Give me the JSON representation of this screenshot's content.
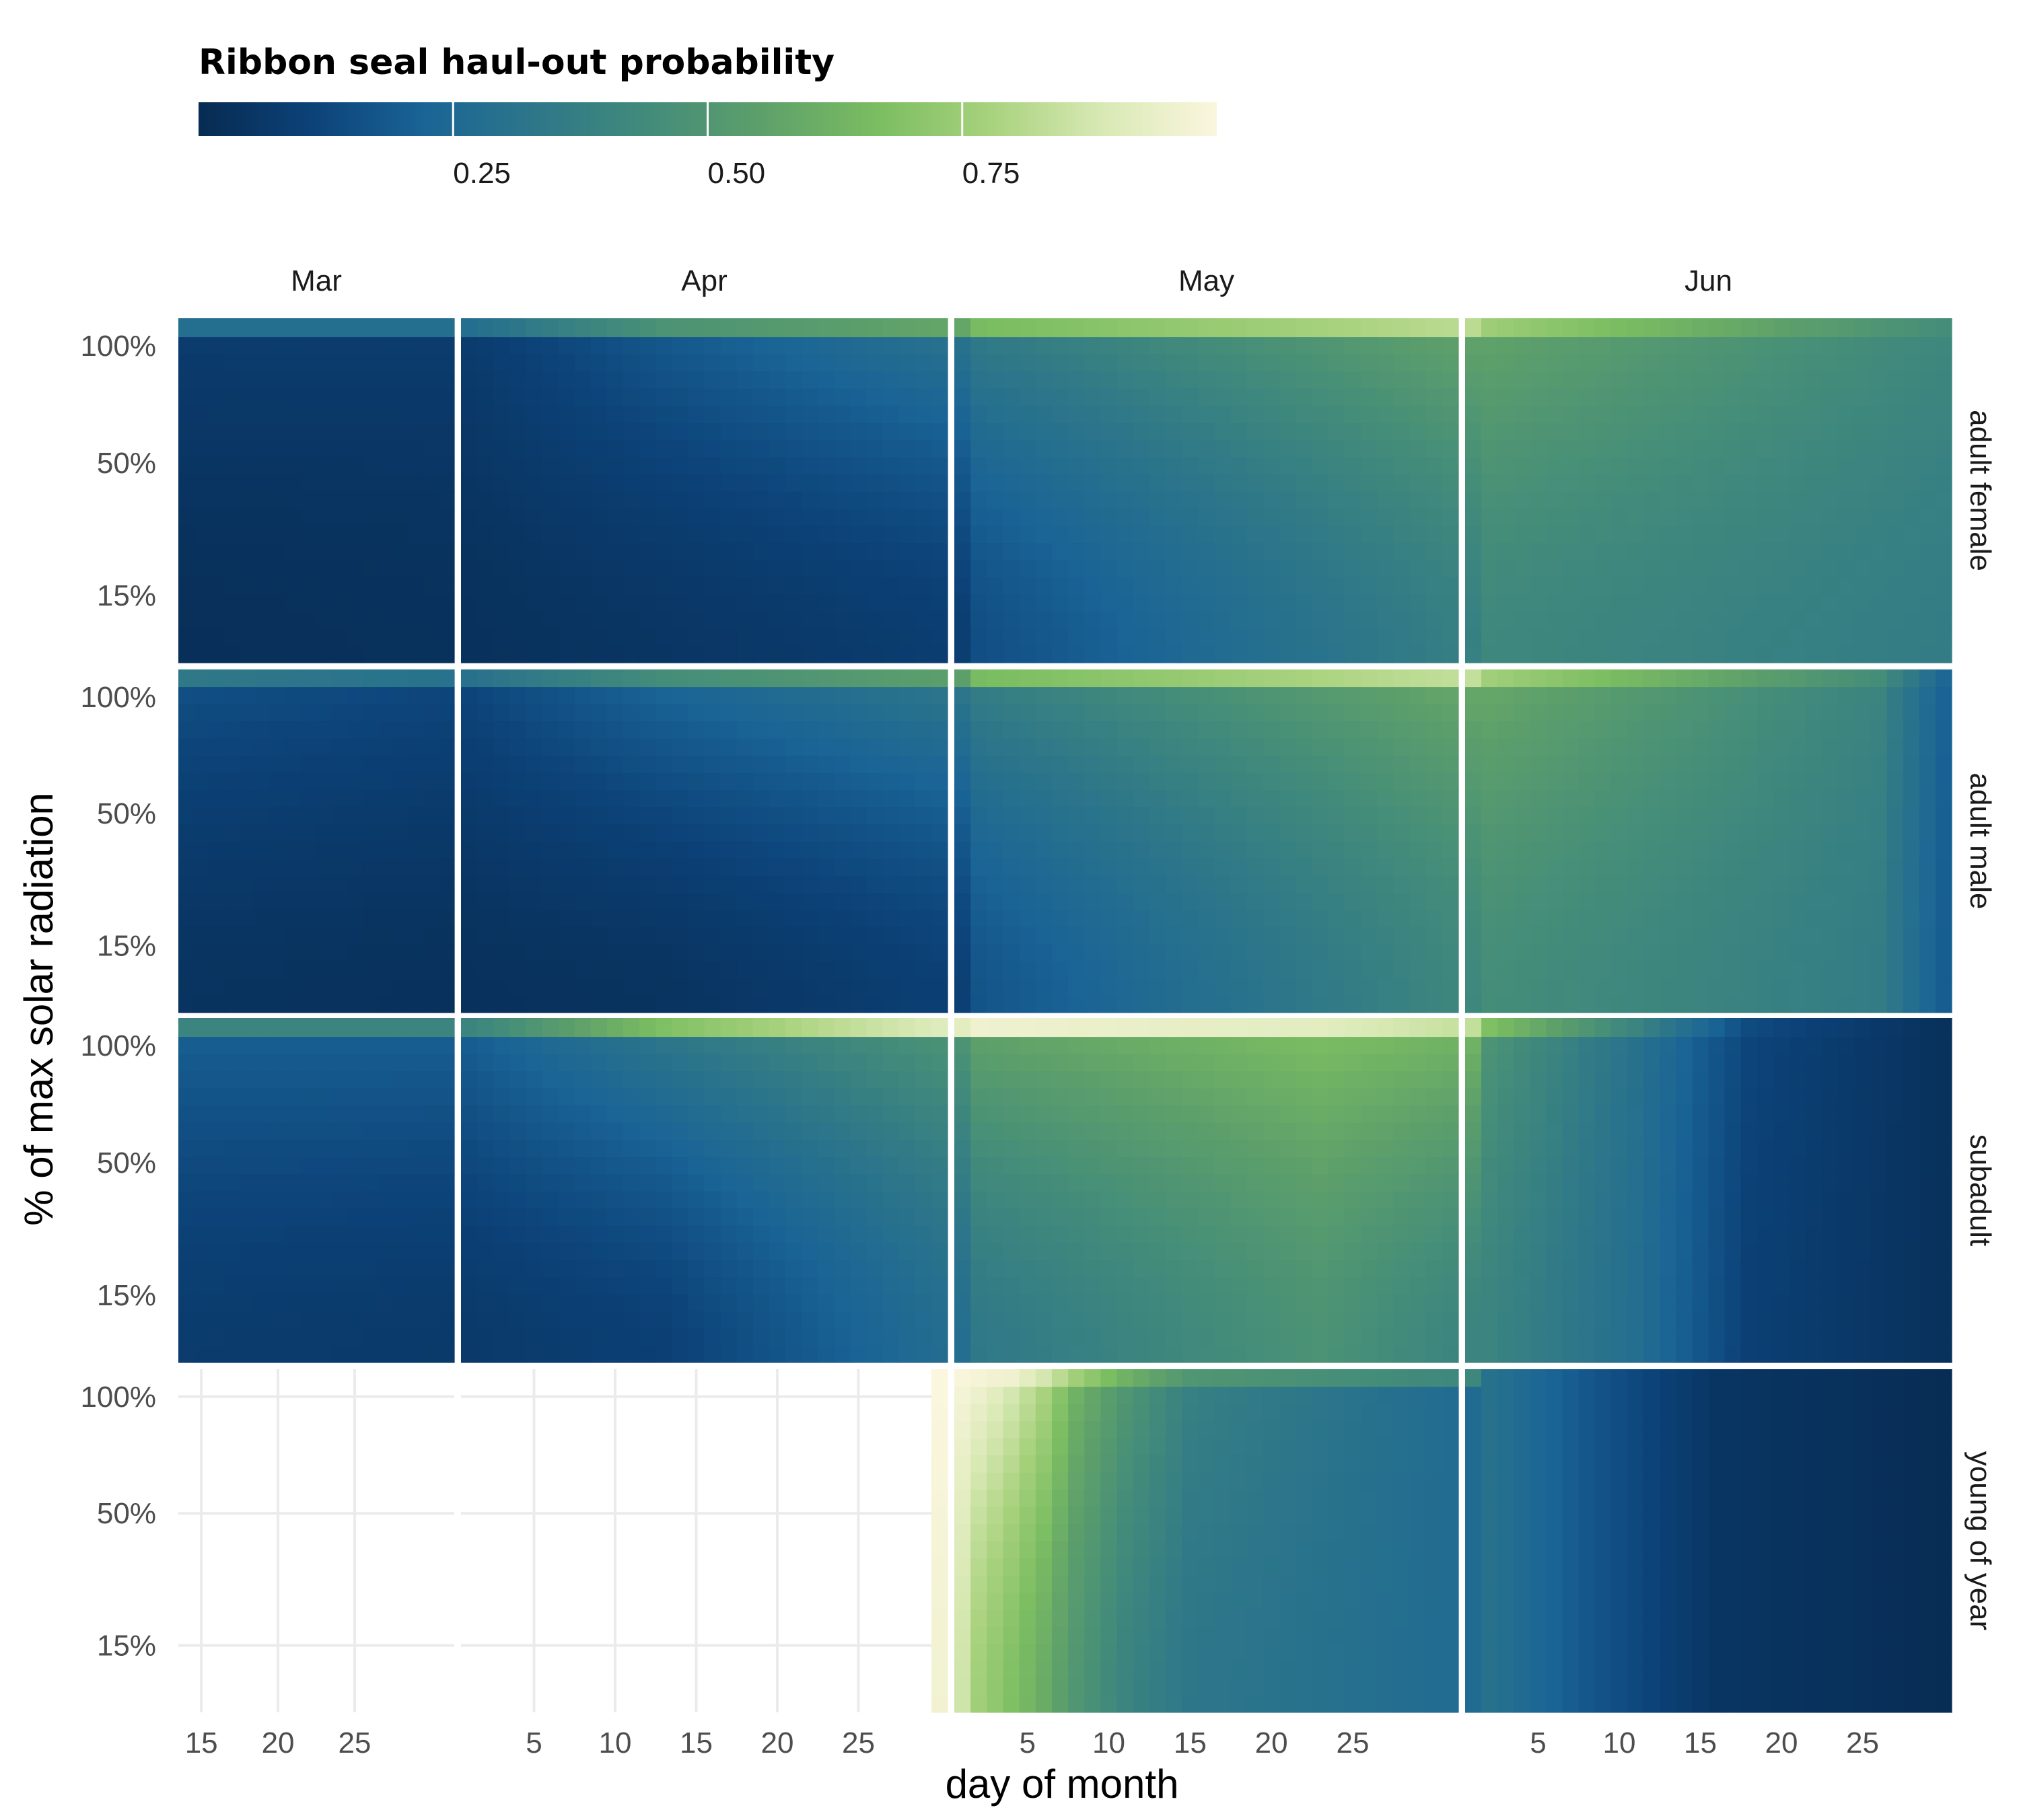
{
  "chart_data": {
    "type": "heatmap",
    "title": "",
    "legend": {
      "title": "Ribbon seal haul-out probability",
      "placement": "top-left",
      "orientation": "horizontal",
      "range": [
        0.0,
        1.0
      ],
      "ticks": [
        0.25,
        0.5,
        0.75
      ],
      "tick_labels": [
        "0.25",
        "0.50",
        "0.75"
      ],
      "colorscale": [
        "#072b52",
        "#0c4278",
        "#1a6496",
        "#2e7789",
        "#438c7a",
        "#5ea06a",
        "#7bbd61",
        "#a8d27d",
        "#d9e9b5",
        "#fbf6de"
      ]
    },
    "xlabel": "day of month",
    "ylabel": "% of max solar radiation",
    "months": [
      {
        "label": "Mar",
        "start_day": 14,
        "days": 31,
        "ticks": [
          "15",
          "20",
          "25"
        ]
      },
      {
        "label": "Apr",
        "start_day": 1,
        "days": 30,
        "ticks": [
          "5",
          "10",
          "15",
          "20",
          "25"
        ]
      },
      {
        "label": "May",
        "start_day": 1,
        "days": 31,
        "ticks": [
          "5",
          "10",
          "15",
          "20",
          "25"
        ]
      },
      {
        "label": "Jun",
        "start_day": 1,
        "days": 30,
        "ticks": [
          "5",
          "10",
          "15",
          "20",
          "25"
        ]
      }
    ],
    "y_ticks": [
      "100%",
      "50%",
      "15%"
    ],
    "grid": true,
    "rows": [
      {
        "label": "adult female",
        "anchors": [
          {
            "day": 0,
            "low": 0.02,
            "high": 0.08,
            "top": 0.28
          },
          {
            "day": 18,
            "low": 0.03,
            "high": 0.08,
            "top": 0.28
          },
          {
            "day": 30,
            "low": 0.05,
            "high": 0.18,
            "top": 0.48
          },
          {
            "day": 48,
            "low": 0.09,
            "high": 0.3,
            "top": 0.58
          },
          {
            "day": 49,
            "low": 0.15,
            "high": 0.34,
            "top": 0.66
          },
          {
            "day": 79,
            "low": 0.38,
            "high": 0.56,
            "top": 0.82
          },
          {
            "day": 80,
            "low": 0.42,
            "high": 0.56,
            "top": 0.75
          },
          {
            "day": 108,
            "low": 0.36,
            "high": 0.42,
            "top": 0.45
          }
        ]
      },
      {
        "label": "adult male",
        "anchors": [
          {
            "day": 0,
            "low": 0.04,
            "high": 0.15,
            "top": 0.34
          },
          {
            "day": 18,
            "low": 0.03,
            "high": 0.12,
            "top": 0.3
          },
          {
            "day": 30,
            "low": 0.04,
            "high": 0.22,
            "top": 0.45
          },
          {
            "day": 48,
            "low": 0.1,
            "high": 0.32,
            "top": 0.55
          },
          {
            "day": 49,
            "low": 0.17,
            "high": 0.36,
            "top": 0.66
          },
          {
            "day": 79,
            "low": 0.42,
            "high": 0.58,
            "top": 0.84
          },
          {
            "day": 80,
            "low": 0.45,
            "high": 0.58,
            "top": 0.76
          },
          {
            "day": 104,
            "low": 0.36,
            "high": 0.4,
            "top": 0.45
          },
          {
            "day": 108,
            "low": 0.2,
            "high": 0.22,
            "top": 0.24
          }
        ]
      },
      {
        "label": "subadult",
        "anchors": [
          {
            "day": 0,
            "low": 0.08,
            "high": 0.2,
            "top": 0.4
          },
          {
            "day": 18,
            "low": 0.07,
            "high": 0.2,
            "top": 0.4
          },
          {
            "day": 30,
            "low": 0.1,
            "high": 0.32,
            "top": 0.68
          },
          {
            "day": 48,
            "low": 0.28,
            "high": 0.48,
            "top": 0.92
          },
          {
            "day": 49,
            "low": 0.34,
            "high": 0.55,
            "top": 0.96
          },
          {
            "day": 70,
            "low": 0.48,
            "high": 0.66,
            "top": 0.92
          },
          {
            "day": 79,
            "low": 0.4,
            "high": 0.62,
            "top": 0.84
          },
          {
            "day": 80,
            "low": 0.4,
            "high": 0.48,
            "top": 0.68
          },
          {
            "day": 89,
            "low": 0.28,
            "high": 0.3,
            "top": 0.4
          },
          {
            "day": 96,
            "low": 0.1,
            "high": 0.12,
            "top": 0.14
          },
          {
            "day": 108,
            "low": 0.03,
            "high": 0.03,
            "top": 0.03
          }
        ]
      },
      {
        "label": "young of year",
        "anchors": [
          {
            "day": 47,
            "low": 0.97,
            "high": 1.0,
            "top": 1.0
          },
          {
            "day": 49,
            "low": 0.76,
            "high": 0.95,
            "top": 0.98
          },
          {
            "day": 51,
            "low": 0.68,
            "high": 0.88,
            "top": 0.96
          },
          {
            "day": 53,
            "low": 0.6,
            "high": 0.78,
            "top": 0.88
          },
          {
            "day": 55,
            "low": 0.5,
            "high": 0.62,
            "top": 0.76
          },
          {
            "day": 58,
            "low": 0.4,
            "high": 0.5,
            "top": 0.62
          },
          {
            "day": 62,
            "low": 0.33,
            "high": 0.38,
            "top": 0.5
          },
          {
            "day": 79,
            "low": 0.26,
            "high": 0.26,
            "top": 0.42
          },
          {
            "day": 80,
            "low": 0.3,
            "high": 0.3,
            "top": 0.3
          },
          {
            "day": 86,
            "low": 0.18,
            "high": 0.18,
            "top": 0.18
          },
          {
            "day": 94,
            "low": 0.05,
            "high": 0.05,
            "top": 0.05
          },
          {
            "day": 108,
            "low": 0.01,
            "high": 0.01,
            "top": 0.01
          }
        ]
      }
    ]
  }
}
